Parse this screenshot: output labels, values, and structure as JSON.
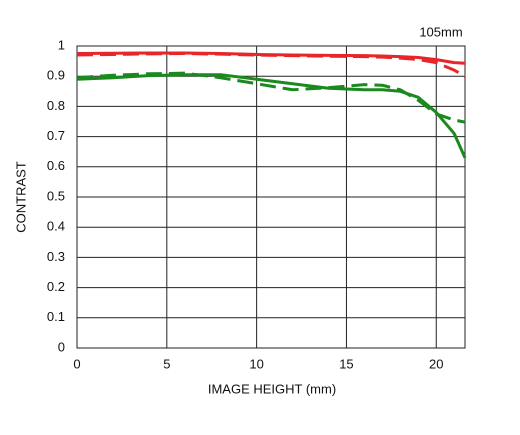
{
  "chart_data": {
    "type": "line",
    "annotation": "105mm",
    "x_label": "IMAGE HEIGHT (mm)",
    "y_label": "CONTRAST",
    "x": [
      0,
      2,
      4,
      6,
      8,
      10,
      12,
      14,
      16,
      17,
      18,
      19,
      20,
      21,
      21.6
    ],
    "series": [
      {
        "color": "#e8262a",
        "linestyle": "solid",
        "values": [
          0.975,
          0.976,
          0.977,
          0.977,
          0.975,
          0.972,
          0.97,
          0.969,
          0.968,
          0.967,
          0.965,
          0.962,
          0.955,
          0.945,
          0.943
        ]
      },
      {
        "color": "#e8262a",
        "linestyle": "dashed",
        "values": [
          0.97,
          0.972,
          0.974,
          0.975,
          0.973,
          0.97,
          0.968,
          0.966,
          0.965,
          0.963,
          0.96,
          0.955,
          0.945,
          0.92,
          0.9
        ]
      },
      {
        "color": "#1a8a1e",
        "linestyle": "solid",
        "values": [
          0.89,
          0.895,
          0.902,
          0.905,
          0.905,
          0.89,
          0.875,
          0.86,
          0.855,
          0.855,
          0.85,
          0.83,
          0.78,
          0.71,
          0.63
        ]
      },
      {
        "color": "#1a8a1e",
        "linestyle": "dashed",
        "values": [
          0.895,
          0.903,
          0.908,
          0.91,
          0.895,
          0.875,
          0.855,
          0.862,
          0.872,
          0.87,
          0.855,
          0.82,
          0.775,
          0.755,
          0.748
        ]
      }
    ],
    "xlim": [
      0,
      21.6
    ],
    "ylim": [
      0,
      1
    ],
    "xticks": [
      0,
      5,
      10,
      15,
      20
    ],
    "yticks": [
      0,
      0.1,
      0.2,
      0.3,
      0.4,
      0.5,
      0.6,
      0.7,
      0.8,
      0.9,
      1
    ],
    "grid": true
  }
}
